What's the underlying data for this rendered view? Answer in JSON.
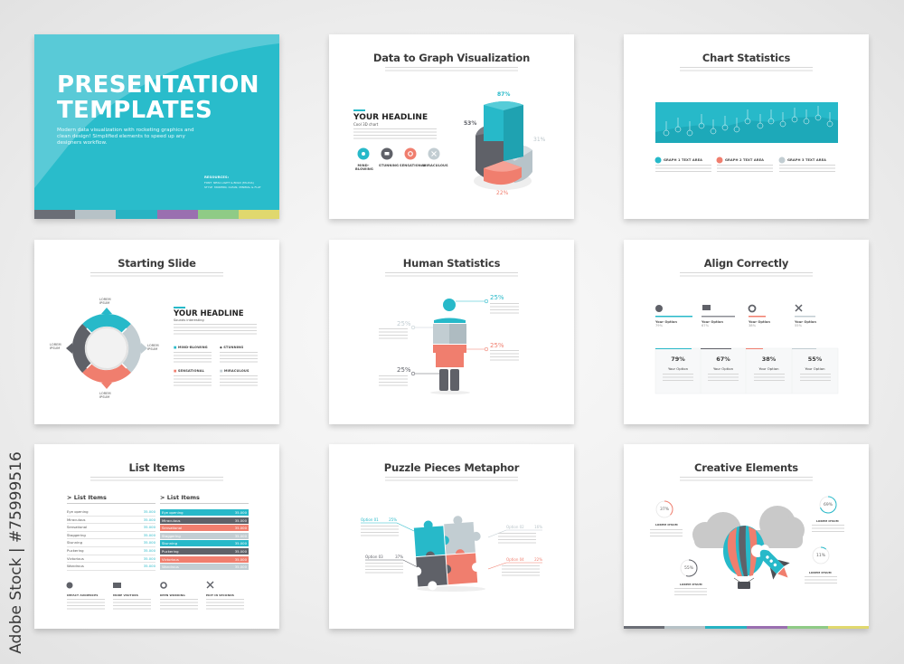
{
  "colors": {
    "teal": "#27b9c9",
    "dark_gray": "#5f6168",
    "light_gray": "#c2cdd2",
    "salmon": "#f07e6e",
    "cover_bg": "#29bccb"
  },
  "credit": "Adobe Stock | #75999516",
  "cover": {
    "title_line1": "PRESENTATION",
    "title_line2": "TEMPLATES",
    "subtitle": "Modern data visualization with rocketing graphics and clean design! Simplified elements to speed up any designers workflow.",
    "resources_label": "RESOURCES:",
    "resources": [
      {
        "key": "FONT",
        "value": "NEXA LIGHT & BOLD (FAUXIA)"
      },
      {
        "key": "STYLE",
        "value": "MODERN, CLEAN, MINIMAL & FLAT"
      }
    ]
  },
  "data_graph": {
    "title": "Data to Graph Visualization",
    "headline": "YOUR HEADLINE",
    "headline_sub": "Cool 3D chart",
    "icons": [
      {
        "icon": "anchor-icon",
        "label": "MIND-BLOWING"
      },
      {
        "icon": "presentation-icon",
        "label": "STUNNING"
      },
      {
        "icon": "gear-icon",
        "label": "SENSATIONAL"
      },
      {
        "icon": "tools-icon",
        "label": "MIRACULOUS"
      }
    ],
    "chart_values": {
      "teal": "87%",
      "dark_gray": "53%",
      "light_gray": "31%",
      "salmon": "22%"
    }
  },
  "chart_stats": {
    "title": "Chart Statistics",
    "areas": [
      {
        "icon": "anchor-icon",
        "label": "GRAPH 1 TEXT AREA"
      },
      {
        "icon": "gear-icon",
        "label": "GRAPH 2 TEXT AREA"
      },
      {
        "icon": "tools-icon",
        "label": "GRAPH 3 TEXT AREA"
      }
    ]
  },
  "starting": {
    "title": "Starting Slide",
    "headline": "YOUR HEADLINE",
    "headline_sub": "Sounds interesting",
    "ring_labels": {
      "top": "LOREM IPSUM",
      "right": "LOREM IPSUM",
      "bottom": "LOREM IPSUM",
      "left": "LOREM IPSUM"
    },
    "features": [
      "MIND-BLOWING",
      "STUNNING",
      "SENSATIONAL",
      "MIRACULOUS"
    ]
  },
  "human": {
    "title": "Human Statistics",
    "stats": [
      "25%",
      "25%",
      "25%",
      "25%"
    ]
  },
  "align": {
    "title": "Align Correctly",
    "options": [
      {
        "icon": "anchor-icon",
        "label": "Your Option",
        "value": "79%"
      },
      {
        "icon": "presentation-icon",
        "label": "Your Option",
        "value": "67%"
      },
      {
        "icon": "gear-icon",
        "label": "Your Option",
        "value": "38%"
      },
      {
        "icon": "tools-icon",
        "label": "Your Option",
        "value": "55%"
      }
    ]
  },
  "list": {
    "title": "List Items",
    "col_title": "> List Items",
    "items": [
      {
        "name": "Eye opening",
        "value": "35.000"
      },
      {
        "name": "Miraculous",
        "value": "35.000"
      },
      {
        "name": "Sensational",
        "value": "35.000"
      },
      {
        "name": "Staggering",
        "value": "35.000"
      },
      {
        "name": "Stunning",
        "value": "35.000"
      },
      {
        "name": "Puckering",
        "value": "35.000"
      },
      {
        "name": "Victorious",
        "value": "35.000"
      },
      {
        "name": "Wondrous",
        "value": "35.000"
      }
    ],
    "features": [
      {
        "icon": "anchor-icon",
        "label": "IMPACT AUDIENCES"
      },
      {
        "icon": "presentation-icon",
        "label": "MORE VISITORS"
      },
      {
        "icon": "gear-icon",
        "label": "KEEN WORKING"
      },
      {
        "icon": "tools-icon",
        "label": "EDIT IN SECONDS"
      }
    ]
  },
  "puzzle": {
    "title": "Puzzle Pieces Metaphor",
    "options": [
      {
        "label": "Option 01",
        "value": "25%"
      },
      {
        "label": "Option 02",
        "value": "16%"
      },
      {
        "label": "Option 03",
        "value": "37%"
      },
      {
        "label": "Option 04",
        "value": "22%"
      }
    ]
  },
  "creative": {
    "title": "Creative Elements",
    "gauges": [
      {
        "value": "37%",
        "fraction": 0.37,
        "label": "LOREM IPSUM"
      },
      {
        "value": "69%",
        "fraction": 0.69,
        "label": "LOREM IPSUM"
      },
      {
        "value": "55%",
        "fraction": 0.55,
        "label": "LOREM IPSUM"
      },
      {
        "value": "11%",
        "fraction": 0.11,
        "label": "LOREM IPSUM"
      }
    ]
  }
}
